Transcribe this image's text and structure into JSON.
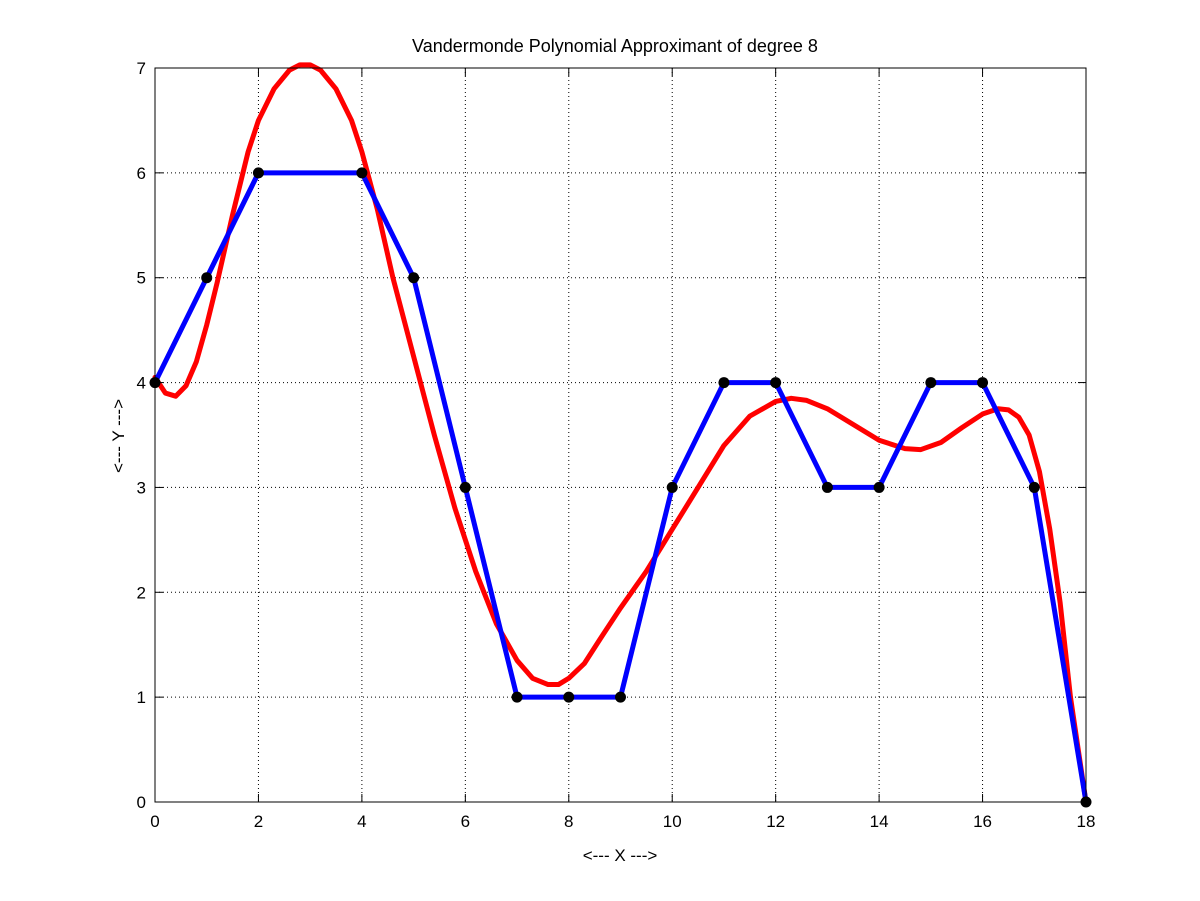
{
  "chart_data": {
    "type": "line",
    "title": "Vandermonde Polynomial Approximant of degree 8",
    "xlabel": "<--- X --->",
    "ylabel": "<--- Y --->",
    "xlim": [
      0,
      18
    ],
    "ylim": [
      0,
      7
    ],
    "xticks": [
      0,
      2,
      4,
      6,
      8,
      10,
      12,
      14,
      16,
      18
    ],
    "yticks": [
      0,
      1,
      2,
      3,
      4,
      5,
      6,
      7
    ],
    "grid": true,
    "series": [
      {
        "role": "approximant",
        "color": "#ff0000",
        "x": [
          0,
          0.2,
          0.4,
          0.6,
          0.8,
          1.0,
          1.2,
          1.5,
          1.8,
          2.0,
          2.3,
          2.6,
          2.8,
          3.0,
          3.2,
          3.5,
          3.8,
          4.0,
          4.3,
          4.6,
          5.0,
          5.4,
          5.8,
          6.2,
          6.6,
          7.0,
          7.3,
          7.6,
          7.8,
          8.0,
          8.3,
          8.6,
          9.0,
          9.5,
          10.0,
          10.5,
          11.0,
          11.5,
          12.0,
          12.3,
          12.6,
          13.0,
          13.5,
          14.0,
          14.5,
          14.8,
          15.2,
          15.6,
          16.0,
          16.3,
          16.5,
          16.7,
          16.9,
          17.1,
          17.3,
          17.5,
          17.7,
          17.85,
          18.0
        ],
        "y": [
          4.05,
          3.9,
          3.87,
          3.97,
          4.2,
          4.55,
          4.95,
          5.6,
          6.2,
          6.5,
          6.8,
          6.98,
          7.03,
          7.03,
          6.98,
          6.8,
          6.5,
          6.2,
          5.65,
          5.0,
          4.25,
          3.5,
          2.8,
          2.2,
          1.7,
          1.35,
          1.18,
          1.12,
          1.12,
          1.18,
          1.32,
          1.55,
          1.85,
          2.2,
          2.6,
          3.0,
          3.4,
          3.68,
          3.82,
          3.85,
          3.83,
          3.75,
          3.6,
          3.45,
          3.37,
          3.36,
          3.43,
          3.57,
          3.7,
          3.75,
          3.74,
          3.67,
          3.5,
          3.15,
          2.6,
          1.9,
          1.0,
          0.5,
          0.0
        ]
      },
      {
        "role": "data",
        "color": "#0000ff",
        "marker_color": "#000000",
        "x": [
          0,
          1,
          2,
          3,
          4,
          5,
          6,
          7,
          8,
          9,
          10,
          11,
          12,
          13,
          14,
          15,
          16,
          17,
          18
        ],
        "y": [
          4,
          5,
          6,
          6,
          6,
          5,
          3,
          1,
          1,
          1,
          3,
          4,
          4,
          3,
          3,
          4,
          4,
          3,
          0
        ],
        "markers": [
          0,
          1,
          2,
          4,
          5,
          6,
          7,
          8,
          9,
          10,
          11,
          12,
          13,
          14,
          15,
          16,
          17,
          18
        ]
      }
    ]
  }
}
